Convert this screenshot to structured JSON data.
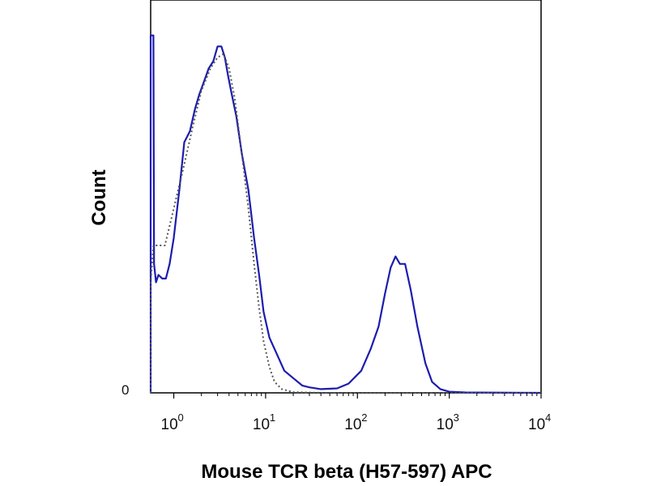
{
  "chart_data": {
    "type": "line",
    "title": "",
    "xlabel": "Mouse TCR beta (H57-597) APC",
    "ylabel": "Count",
    "x_scale": "log",
    "xlim": [
      0.56,
      10000
    ],
    "ylim": [
      0,
      100
    ],
    "y_ticks": [
      {
        "value": 0,
        "label": "0"
      }
    ],
    "x_ticks": [
      {
        "value": 1,
        "base": "10",
        "exp": "0"
      },
      {
        "value": 10,
        "base": "10",
        "exp": "1"
      },
      {
        "value": 100,
        "base": "10",
        "exp": "2"
      },
      {
        "value": 1000,
        "base": "10",
        "exp": "3"
      },
      {
        "value": 10000,
        "base": "10",
        "exp": "4"
      }
    ],
    "colors": {
      "stained": "#1c1cae",
      "control": "#555555",
      "frame": "#000000"
    },
    "series": [
      {
        "key": "stained",
        "style": "solid",
        "points": [
          [
            0.56,
            0
          ],
          [
            0.56,
            97
          ],
          [
            0.6,
            97
          ],
          [
            0.61,
            35
          ],
          [
            0.64,
            30
          ],
          [
            0.68,
            32
          ],
          [
            0.75,
            31
          ],
          [
            0.82,
            31
          ],
          [
            0.9,
            35
          ],
          [
            1.0,
            42
          ],
          [
            1.15,
            55
          ],
          [
            1.3,
            68
          ],
          [
            1.5,
            71
          ],
          [
            1.7,
            77
          ],
          [
            1.9,
            81
          ],
          [
            2.1,
            84
          ],
          [
            2.4,
            88
          ],
          [
            2.7,
            90
          ],
          [
            3.0,
            94
          ],
          [
            3.3,
            94
          ],
          [
            3.6,
            91
          ],
          [
            3.9,
            86
          ],
          [
            4.2,
            82
          ],
          [
            4.8,
            75
          ],
          [
            5.5,
            65
          ],
          [
            6.5,
            55
          ],
          [
            7.5,
            42
          ],
          [
            8.5,
            32
          ],
          [
            9.5,
            22
          ],
          [
            11,
            15
          ],
          [
            13,
            11
          ],
          [
            16,
            6
          ],
          [
            20,
            4
          ],
          [
            25,
            2
          ],
          [
            30,
            1.5
          ],
          [
            40,
            1
          ],
          [
            60,
            1.2
          ],
          [
            80,
            2.5
          ],
          [
            110,
            6
          ],
          [
            140,
            12
          ],
          [
            170,
            18
          ],
          [
            200,
            27
          ],
          [
            230,
            34
          ],
          [
            260,
            37
          ],
          [
            290,
            35
          ],
          [
            330,
            35
          ],
          [
            380,
            28
          ],
          [
            450,
            18
          ],
          [
            550,
            8
          ],
          [
            650,
            3
          ],
          [
            800,
            1
          ],
          [
            1000,
            0.3
          ],
          [
            1500,
            0.1
          ],
          [
            10000,
            0
          ]
        ]
      },
      {
        "key": "control",
        "style": "dotted",
        "points": [
          [
            0.56,
            0
          ],
          [
            0.56,
            30
          ],
          [
            0.6,
            40
          ],
          [
            0.7,
            40
          ],
          [
            0.8,
            40
          ],
          [
            1.0,
            50
          ],
          [
            1.3,
            62
          ],
          [
            1.6,
            72
          ],
          [
            2.0,
            82
          ],
          [
            2.5,
            88
          ],
          [
            3.0,
            91
          ],
          [
            3.5,
            92
          ],
          [
            4.0,
            88
          ],
          [
            4.6,
            80
          ],
          [
            5.5,
            65
          ],
          [
            6.5,
            50
          ],
          [
            7.5,
            35
          ],
          [
            8.5,
            23
          ],
          [
            9.5,
            14
          ],
          [
            11,
            7
          ],
          [
            12.5,
            3
          ],
          [
            15,
            1
          ],
          [
            20,
            0.2
          ],
          [
            40,
            0
          ],
          [
            10000,
            0
          ]
        ]
      }
    ]
  }
}
